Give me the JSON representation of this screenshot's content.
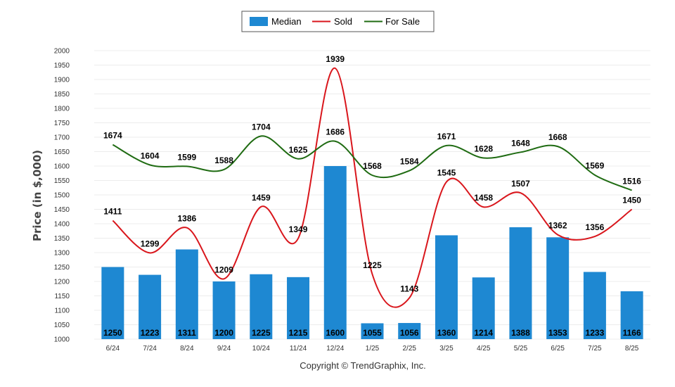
{
  "chart_data": {
    "type": "bar",
    "categories": [
      "6/24",
      "7/24",
      "8/24",
      "9/24",
      "10/24",
      "11/24",
      "12/24",
      "1/25",
      "2/25",
      "3/25",
      "4/25",
      "5/25",
      "6/25",
      "7/25",
      "8/25"
    ],
    "series": [
      {
        "name": "Median",
        "type": "bar",
        "color": "#1e88d2",
        "values": [
          1250,
          1223,
          1311,
          1200,
          1225,
          1215,
          1600,
          1055,
          1056,
          1360,
          1214,
          1388,
          1353,
          1233,
          1166
        ]
      },
      {
        "name": "Sold",
        "type": "line",
        "color": "#d9161c",
        "values": [
          1411,
          1299,
          1386,
          1209,
          1459,
          1349,
          1939,
          1225,
          1143,
          1545,
          1458,
          1507,
          1362,
          1356,
          1450
        ]
      },
      {
        "name": "For Sale",
        "type": "line",
        "color": "#1f6b12",
        "values": [
          1674,
          1604,
          1599,
          1588,
          1704,
          1625,
          1686,
          1568,
          1584,
          1671,
          1628,
          1648,
          1668,
          1569,
          1516
        ]
      }
    ],
    "ylabel": "Price (in $,000)",
    "xlabel": "",
    "ylim": [
      1000,
      2000
    ],
    "yticks": [
      1000,
      1050,
      1100,
      1150,
      1200,
      1250,
      1300,
      1350,
      1400,
      1450,
      1500,
      1550,
      1600,
      1650,
      1700,
      1750,
      1800,
      1850,
      1900,
      1950,
      2000
    ],
    "grid": true,
    "legend_position": "top-center"
  },
  "footer": {
    "copyright": "Copyright © TrendGraphix, Inc."
  }
}
